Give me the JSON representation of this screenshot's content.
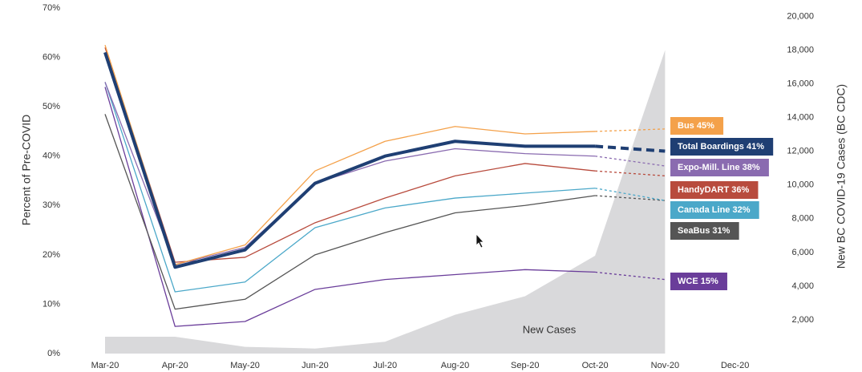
{
  "chart_data": {
    "type": "line",
    "y_label": "Percent of Pre-COVID",
    "y2_label": "New BC COVID-19 Cases (BC CDC)",
    "categories": [
      "Mar-20",
      "Apr-20",
      "May-20",
      "Jun-20",
      "Jul-20",
      "Aug-20",
      "Sep-20",
      "Oct-20",
      "Nov-20",
      "Dec-20"
    ],
    "ylim": [
      0,
      70
    ],
    "yticks": [
      {
        "value": 0,
        "label": "0%"
      },
      {
        "value": 10,
        "label": "10%"
      },
      {
        "value": 20,
        "label": "20%"
      },
      {
        "value": 30,
        "label": "30%"
      },
      {
        "value": 40,
        "label": "40%"
      },
      {
        "value": 50,
        "label": "50%"
      },
      {
        "value": 60,
        "label": "60%"
      },
      {
        "value": 70,
        "label": "70%"
      }
    ],
    "y2lim": [
      0,
      20500
    ],
    "y2ticks": [
      {
        "value": 2000,
        "label": "2,000"
      },
      {
        "value": 4000,
        "label": "4,000"
      },
      {
        "value": 6000,
        "label": "6,000"
      },
      {
        "value": 8000,
        "label": "8,000"
      },
      {
        "value": 10000,
        "label": "10,000"
      },
      {
        "value": 12000,
        "label": "12,000"
      },
      {
        "value": 14000,
        "label": "14,000"
      },
      {
        "value": 16000,
        "label": "16,000"
      },
      {
        "value": 18000,
        "label": "18,000"
      },
      {
        "value": 20000,
        "label": "20,000"
      }
    ],
    "series": [
      {
        "name": "New Cases",
        "type": "area",
        "axis": "y2",
        "color": "#d9d9db",
        "values": [
          1000,
          1000,
          400,
          300,
          700,
          2300,
          3400,
          5800,
          18000,
          null
        ]
      },
      {
        "name": "WCE 15%",
        "color": "#6a3d9a",
        "values": [
          54,
          5.5,
          6.5,
          13,
          15,
          16,
          17,
          16.5,
          15,
          null
        ]
      },
      {
        "name": "SeaBus 31%",
        "color": "#555555",
        "values": [
          48.5,
          9,
          11,
          20,
          24.5,
          28.5,
          30,
          32,
          31,
          null
        ]
      },
      {
        "name": "Canada Line 32%",
        "color": "#4ba8c9",
        "values": [
          55,
          12.5,
          14.5,
          25.5,
          29.5,
          31.5,
          32.5,
          33.5,
          31,
          null
        ]
      },
      {
        "name": "HandyDART 36%",
        "color": "#b84b3d",
        "values": [
          62,
          18.5,
          19.5,
          26.5,
          31.5,
          36,
          38.5,
          37,
          36,
          null
        ]
      },
      {
        "name": "Expo-Mill. Line 38%",
        "color": "#8a6bb0",
        "values": [
          55,
          18,
          21.5,
          34.5,
          39,
          41.5,
          40.5,
          40,
          38,
          null
        ]
      },
      {
        "name": "Bus 45%",
        "color": "#f4a14a",
        "values": [
          62.5,
          18,
          22,
          37,
          43,
          46,
          44.5,
          45,
          45.5,
          null
        ]
      },
      {
        "name": "Total Boardings 41%",
        "color": "#1f3f73",
        "values": [
          61,
          17.5,
          21,
          34.5,
          40,
          43,
          42,
          42,
          41,
          null
        ]
      }
    ]
  }
}
